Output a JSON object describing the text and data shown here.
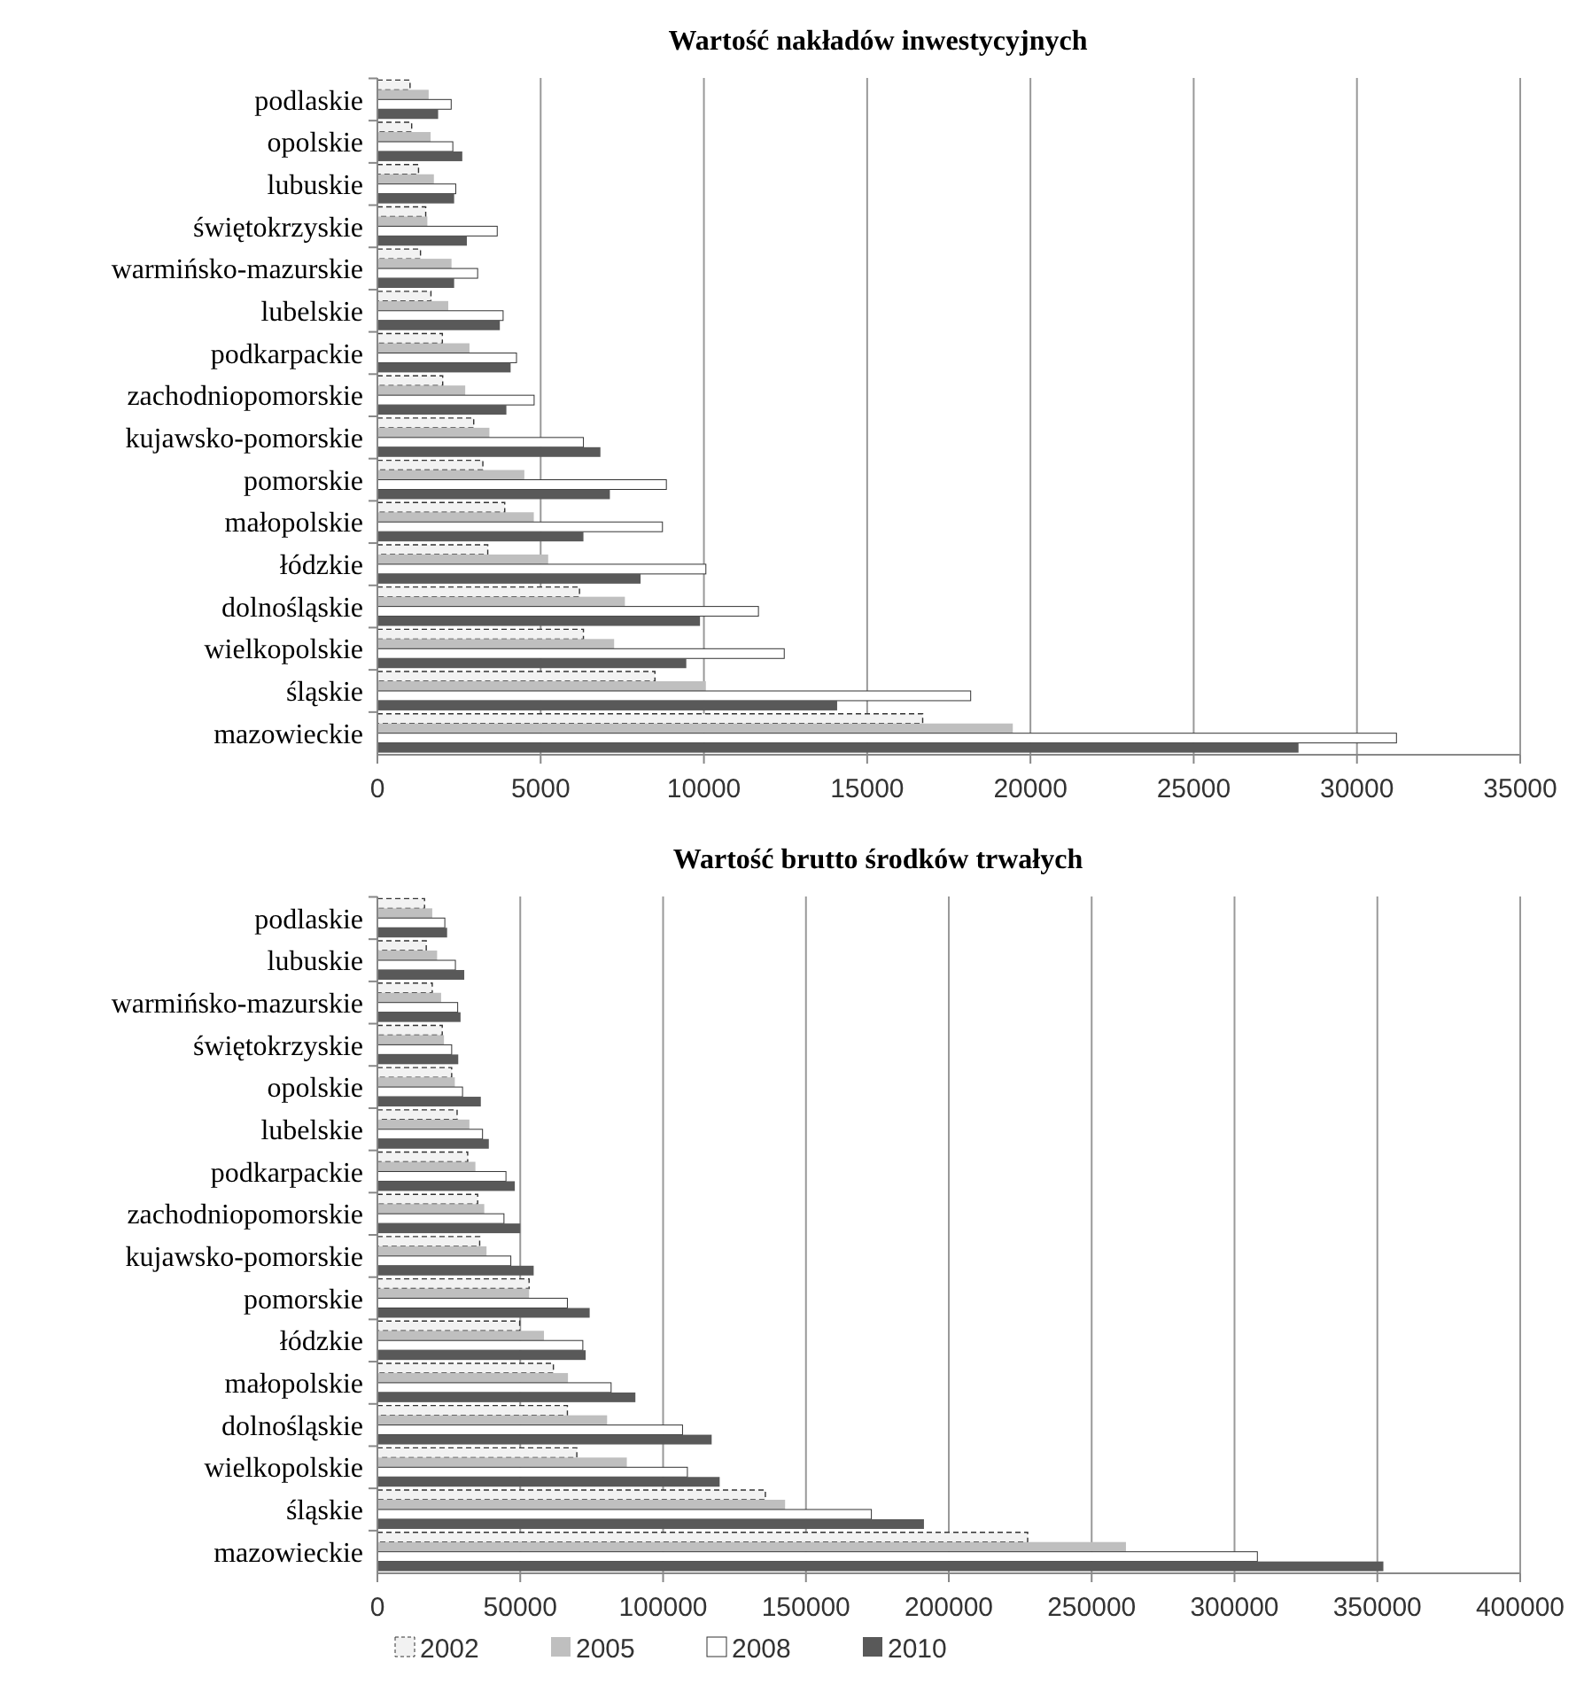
{
  "chart_data": [
    {
      "type": "bar",
      "orientation": "horizontal",
      "title": "Wartość nakładów inwestycyjnych",
      "categories": [
        "podlaskie",
        "opolskie",
        "lubuskie",
        "świętokrzyskie",
        "warmińsko-mazurskie",
        "lubelskie",
        "podkarpackie",
        "zachodniopomorskie",
        "kujawsko-pomorskie",
        "pomorskie",
        "małopolskie",
        "łódzkie",
        "dolnośląskie",
        "wielkopolskie",
        "śląskie",
        "mazowieckie"
      ],
      "series": [
        {
          "color": "#f2f2f2",
          "line_style": "dashed",
          "values": [
            1000,
            1050,
            1260,
            1480,
            1320,
            1640,
            1990,
            2000,
            2950,
            3230,
            3900,
            3380,
            6190,
            6310,
            8500,
            16700
          ]
        },
        {
          "color": "#bfbfbf",
          "values": [
            1570,
            1630,
            1730,
            1530,
            2270,
            2170,
            2820,
            2690,
            3430,
            4500,
            4790,
            5230,
            7580,
            7250,
            10060,
            19460
          ]
        },
        {
          "color": "#ffffff",
          "values": [
            2260,
            2310,
            2400,
            3670,
            3070,
            3850,
            4260,
            4800,
            6310,
            8850,
            8730,
            10060,
            11670,
            12460,
            18170,
            31210
          ]
        },
        {
          "color": "#595959",
          "values": [
            1860,
            2600,
            2350,
            2740,
            2350,
            3750,
            4080,
            3950,
            6830,
            7120,
            6310,
            8060,
            9880,
            9460,
            14080,
            28210
          ]
        }
      ],
      "xlim": [
        0,
        35000
      ],
      "xticks": [
        0,
        5000,
        10000,
        15000,
        20000,
        25000,
        30000,
        35000
      ],
      "grid": "x",
      "legend": false
    },
    {
      "type": "bar",
      "orientation": "horizontal",
      "title": "Wartość brutto środków trwałych",
      "categories": [
        "podlaskie",
        "lubuskie",
        "warmińsko-mazurskie",
        "świętokrzyskie",
        "opolskie",
        "lubelskie",
        "podkarpackie",
        "zachodniopomorskie",
        "kujawsko-pomorskie",
        "pomorskie",
        "łódzkie",
        "małopolskie",
        "dolnośląskie",
        "wielkopolskie",
        "śląskie",
        "mazowieckie"
      ],
      "series": [
        {
          "name": "2002",
          "color": "#f2f2f2",
          "line_style": "dashed",
          "values": [
            16500,
            17100,
            19200,
            22700,
            26000,
            27900,
            31600,
            35100,
            35800,
            53100,
            49800,
            61600,
            66500,
            69800,
            135800,
            227600
          ]
        },
        {
          "name": "2005",
          "color": "#bfbfbf",
          "values": [
            19200,
            20900,
            22300,
            23300,
            27100,
            32200,
            34300,
            37400,
            38200,
            53100,
            58300,
            66700,
            80400,
            87300,
            142700,
            262000
          ]
        },
        {
          "name": "2008",
          "color": "#ffffff",
          "values": [
            23600,
            27300,
            28100,
            26000,
            29800,
            36800,
            45000,
            44300,
            46700,
            66500,
            71900,
            81800,
            106800,
            108500,
            172900,
            308000
          ]
        },
        {
          "name": "2010",
          "color": "#595959",
          "values": [
            24400,
            30400,
            29100,
            28300,
            36200,
            39000,
            48100,
            50000,
            54700,
            74300,
            72900,
            90300,
            117000,
            119800,
            191300,
            352100
          ]
        }
      ],
      "xlim": [
        0,
        400000
      ],
      "xticks": [
        0,
        50000,
        100000,
        150000,
        200000,
        250000,
        300000,
        350000,
        400000
      ],
      "grid": "x",
      "legend": "bottom left"
    }
  ]
}
